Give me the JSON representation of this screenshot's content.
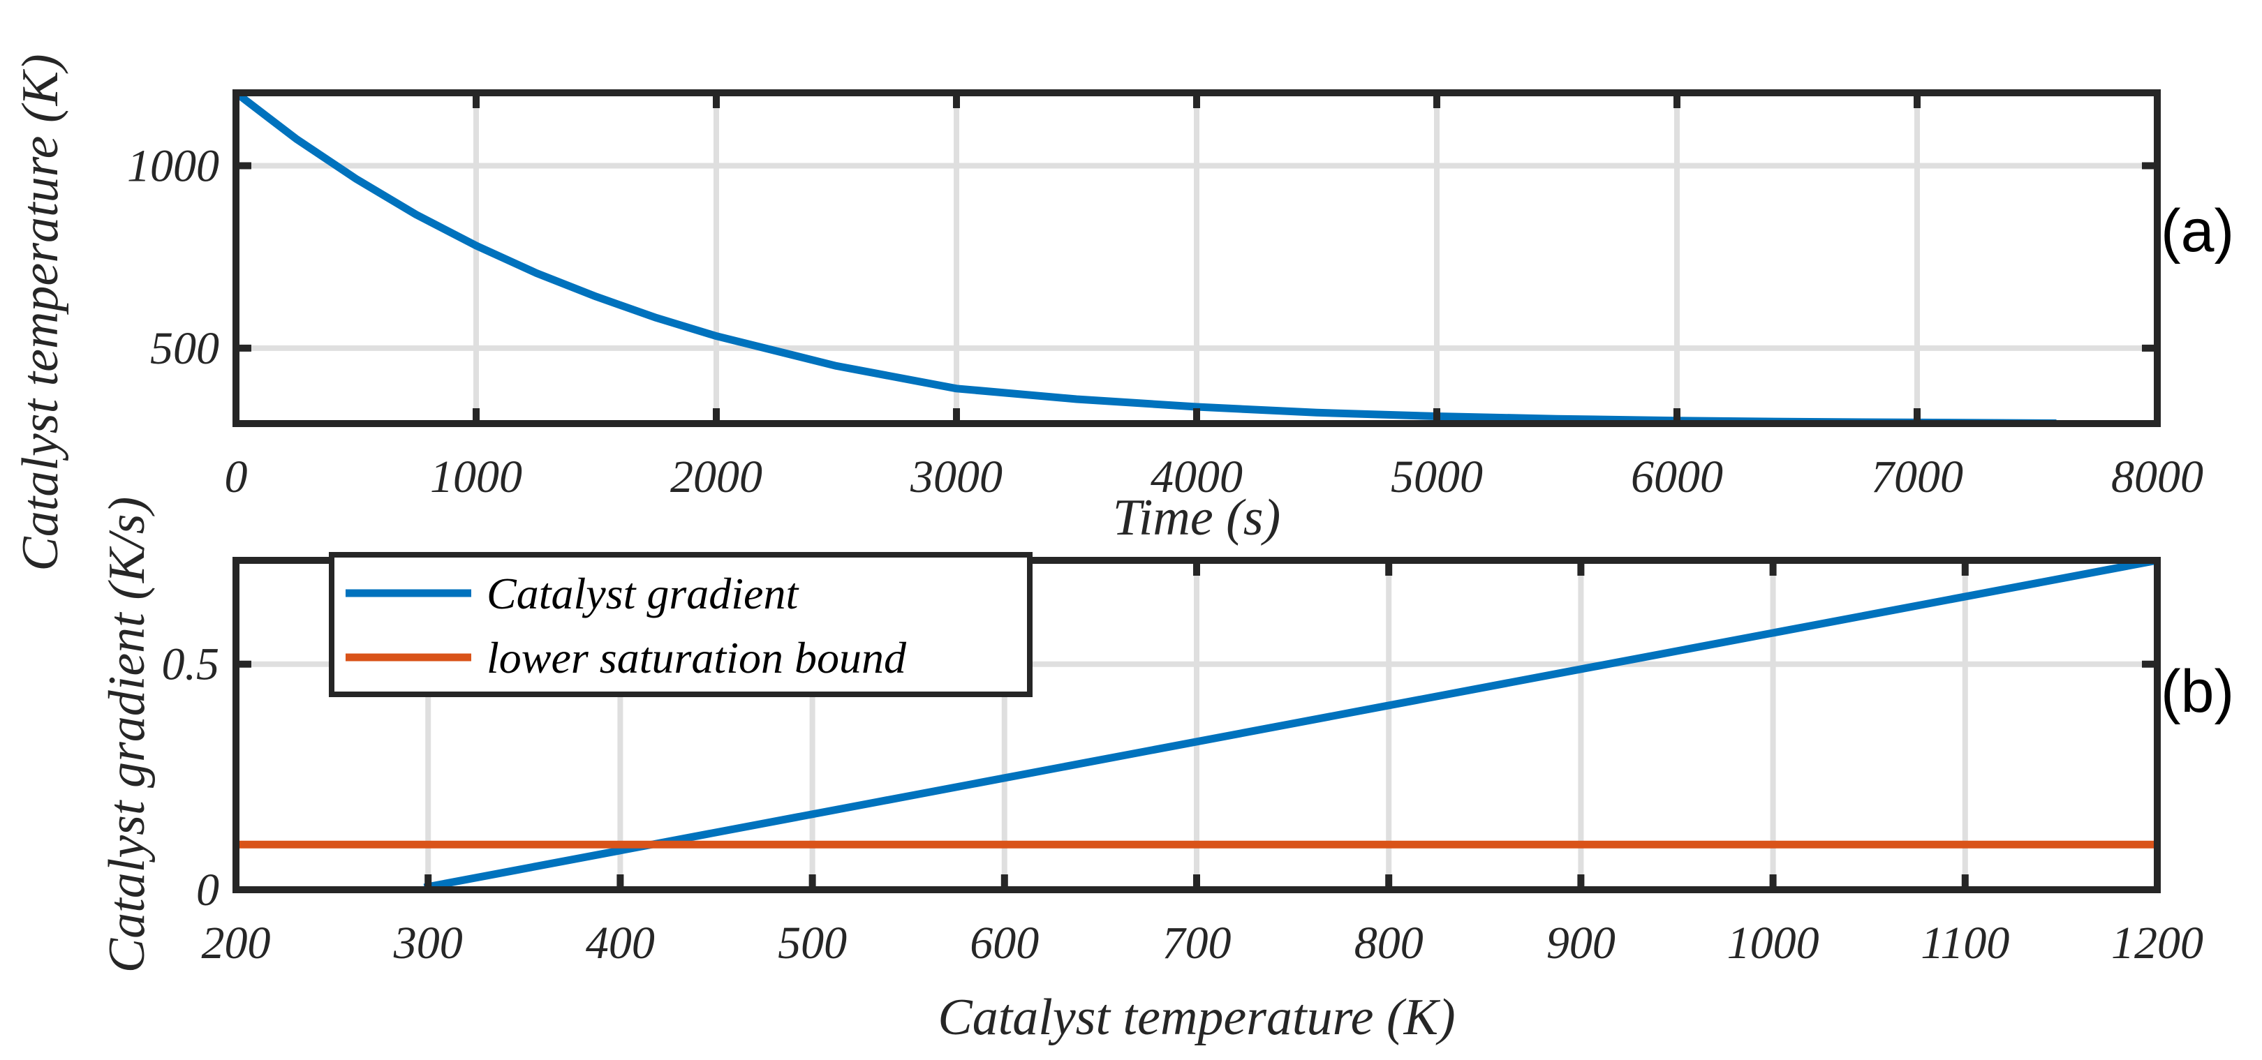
{
  "chart_data": [
    {
      "type": "line",
      "panel_label": "(a)",
      "xlabel": "Time (s)",
      "ylabel": "Catalyst temperature (K)",
      "xlim": [
        0,
        8000
      ],
      "ylim": [
        293,
        1200
      ],
      "xticks": [
        0,
        1000,
        2000,
        3000,
        4000,
        5000,
        6000,
        7000,
        8000
      ],
      "xtick_labels": [
        "0",
        "1000",
        "2000",
        "3000",
        "4000",
        "5000",
        "6000",
        "7000",
        "8000"
      ],
      "yticks": [
        500,
        1000
      ],
      "ytick_labels": [
        "500",
        "1000"
      ],
      "grid": true,
      "series": [
        {
          "name": "Catalyst temperature",
          "color": "#0072BD",
          "x": [
            0,
            250,
            500,
            750,
            1000,
            1250,
            1500,
            1750,
            2000,
            2500,
            3000,
            3500,
            4000,
            4500,
            5000,
            5500,
            6000,
            6500,
            7000,
            7580
          ],
          "y": [
            1200,
            1074,
            964,
            866,
            781,
            706,
            641,
            583,
            533,
            451,
            389,
            360,
            339,
            323,
            313,
            306,
            301,
            298,
            296,
            294
          ]
        }
      ]
    },
    {
      "type": "line",
      "panel_label": "(b)",
      "xlabel": "Catalyst temperature (K)",
      "ylabel": "Catalyst gradient (K/s)",
      "xlim": [
        200,
        1200
      ],
      "ylim": [
        0,
        0.73
      ],
      "xticks": [
        200,
        300,
        400,
        500,
        600,
        700,
        800,
        900,
        1000,
        1100,
        1200
      ],
      "xtick_labels": [
        "200",
        "300",
        "400",
        "500",
        "600",
        "700",
        "800",
        "900",
        "1000",
        "1100",
        "1200"
      ],
      "yticks": [
        0,
        0.5
      ],
      "ytick_labels": [
        "0",
        "0.5"
      ],
      "grid": true,
      "legend": {
        "position": "top-left",
        "entries": [
          "Catalyst gradient",
          "lower saturation bound"
        ]
      },
      "series": [
        {
          "name": "Catalyst gradient",
          "color": "#0072BD",
          "x": [
            298,
            1200
          ],
          "y": [
            0.005,
            0.73
          ]
        },
        {
          "name": "lower saturation bound",
          "color": "#D95319",
          "x": [
            200,
            1200
          ],
          "y": [
            0.1,
            0.1
          ]
        }
      ]
    }
  ]
}
